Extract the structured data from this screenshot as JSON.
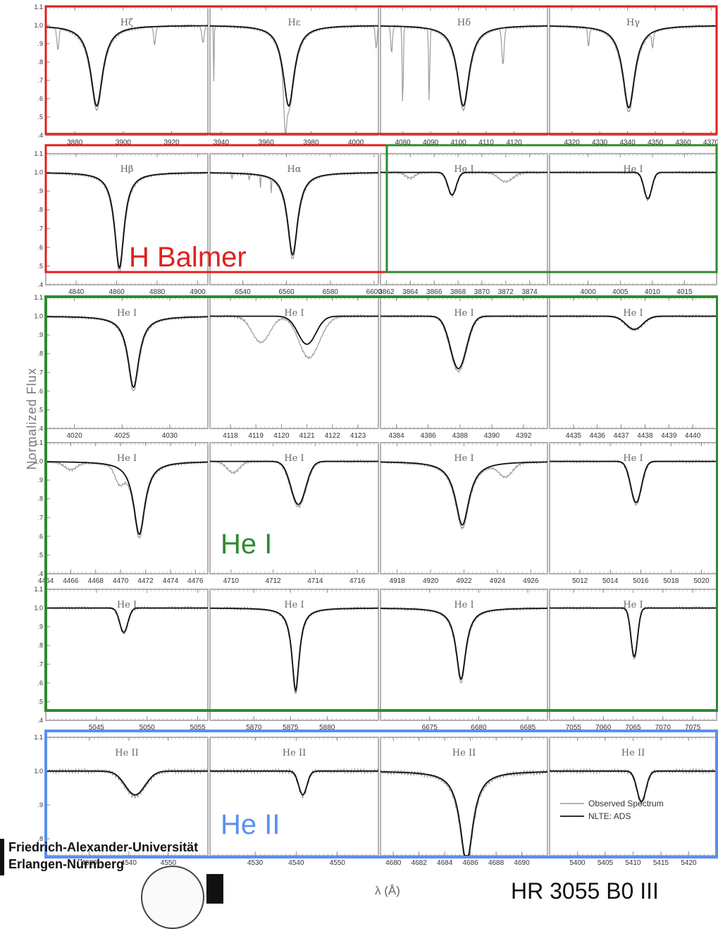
{
  "chart_data": {
    "type": "line",
    "ylabel": "Normalized Flux",
    "xlabel": "λ (Å)",
    "legend": {
      "placement": "bottom-right of last panel",
      "entries": [
        "Observed Spectrum",
        "NLTE: ADS"
      ]
    },
    "series_styles": {
      "observed": "#9a9a9a",
      "model": "#111111"
    },
    "panels": [
      {
        "title": "Hζ",
        "center": 3889.05,
        "xlim": [
          3868,
          3935
        ],
        "ticks": [
          3880,
          3900,
          3920
        ],
        "depth": 0.44,
        "width": 3.0,
        "lorentz": true,
        "ylim": [
          0.4,
          1.1
        ],
        "obs_extra": [
          [
            3873,
            0.12,
            0.4
          ],
          [
            3913,
            0.1,
            0.4
          ],
          [
            3933,
            0.09,
            0.5
          ]
        ]
      },
      {
        "title": "Hε",
        "center": 3970.07,
        "xlim": [
          3935,
          4010
        ],
        "ticks": [
          3940,
          3960,
          3980,
          4000
        ],
        "depth": 0.44,
        "width": 3.0,
        "lorentz": true,
        "ylim": [
          0.4,
          1.1
        ],
        "obs_extra": [
          [
            3968.5,
            0.22,
            0.6
          ],
          [
            4009,
            0.12,
            0.4
          ],
          [
            3936.8,
            0.48,
            0.1
          ]
        ]
      },
      {
        "title": "Hδ",
        "center": 4101.74,
        "xlim": [
          4072,
          4132
        ],
        "ticks": [
          4080,
          4090,
          4100,
          4110,
          4120
        ],
        "depth": 0.44,
        "width": 2.6,
        "lorentz": true,
        "ylim": [
          0.4,
          1.1
        ],
        "obs_extra": [
          [
            4080,
            0.45,
            0.2
          ],
          [
            4089.5,
            0.4,
            0.2
          ],
          [
            4116,
            0.2,
            0.4
          ],
          [
            4076,
            0.15,
            0.3
          ]
        ]
      },
      {
        "title": "Hγ",
        "center": 4340.47,
        "xlim": [
          4312,
          4372
        ],
        "ticks": [
          4320,
          4330,
          4340,
          4350,
          4360,
          4370
        ],
        "depth": 0.45,
        "width": 2.6,
        "lorentz": true,
        "ylim": [
          0.4,
          1.1
        ],
        "obs_extra": [
          [
            4326,
            0.1,
            0.3
          ],
          [
            4349,
            0.08,
            0.3
          ]
        ]
      },
      {
        "title": "Hβ",
        "center": 4861.33,
        "xlim": [
          4825,
          4905
        ],
        "ticks": [
          4840,
          4860,
          4880,
          4900
        ],
        "depth": 0.51,
        "width": 2.8,
        "lorentz": true,
        "ylim": [
          0.4,
          1.1
        ],
        "obs_extra": []
      },
      {
        "title": "Hα",
        "center": 6562.8,
        "xlim": [
          6525,
          6602
        ],
        "ticks": [
          6540,
          6560,
          6580,
          6600
        ],
        "depth": 0.44,
        "width": 2.8,
        "lorentz": true,
        "ylim": [
          0.4,
          1.1
        ],
        "obs_extra": [
          [
            6535,
            0.08,
            0.1
          ],
          [
            6543,
            0.09,
            0.1
          ],
          [
            6548,
            0.1,
            0.1
          ],
          [
            6553,
            0.07,
            0.1
          ]
        ]
      },
      {
        "title": "He I",
        "center": 3867.5,
        "xlim": [
          3861.5,
          3875.5
        ],
        "ticks": [
          3862,
          3864,
          3866,
          3868,
          3870,
          3872,
          3874
        ],
        "depth": 0.12,
        "width": 0.35,
        "lorentz": false,
        "ylim": [
          0.4,
          1.1
        ],
        "obs_extra": [
          [
            3872,
            0.05,
            0.6
          ],
          [
            3864,
            0.03,
            0.4
          ]
        ]
      },
      {
        "title": "He I",
        "center": 4009.3,
        "xlim": [
          3994,
          4020
        ],
        "ticks": [
          4000,
          4005,
          4010,
          4015
        ],
        "depth": 0.14,
        "width": 0.6,
        "lorentz": false,
        "ylim": [
          0.4,
          1.1
        ],
        "obs_extra": []
      },
      {
        "title": "He I",
        "center": 4026.2,
        "xlim": [
          4017,
          4034
        ],
        "ticks": [
          4020,
          4025,
          4030
        ],
        "depth": 0.38,
        "width": 0.7,
        "lorentz": true,
        "ylim": [
          0.4,
          1.1
        ],
        "obs_extra": []
      },
      {
        "title": "He I",
        "center": 4121.0,
        "xlim": [
          4117.2,
          4123.8
        ],
        "ticks": [
          4118,
          4119,
          4120,
          4121,
          4122,
          4123
        ],
        "depth": 0.15,
        "width": 0.35,
        "lorentz": false,
        "ylim": [
          0.4,
          1.1
        ],
        "obs_extra": [
          [
            4119.2,
            0.14,
            0.35
          ],
          [
            4121.3,
            0.08,
            0.4
          ]
        ]
      },
      {
        "title": "He I",
        "center": 4387.9,
        "xlim": [
          4383,
          4393.5
        ],
        "ticks": [
          4384,
          4386,
          4388,
          4390,
          4392
        ],
        "depth": 0.28,
        "width": 0.5,
        "lorentz": false,
        "ylim": [
          0.4,
          1.1
        ],
        "obs_extra": []
      },
      {
        "title": "He I",
        "center": 4437.55,
        "xlim": [
          4434,
          4441
        ],
        "ticks": [
          4435,
          4436,
          4437,
          4438,
          4439,
          4440
        ],
        "depth": 0.07,
        "width": 0.35,
        "lorentz": false,
        "ylim": [
          0.4,
          1.1
        ],
        "obs_extra": []
      },
      {
        "title": "He I",
        "center": 4471.5,
        "xlim": [
          4464,
          4477
        ],
        "ticks": [
          4464,
          4466,
          4468,
          4470,
          4472,
          4474,
          4476
        ],
        "depth": 0.39,
        "width": 0.55,
        "lorentz": true,
        "ylim": [
          0.4,
          1.1
        ],
        "obs_extra": [
          [
            4466,
            0.04,
            0.5
          ],
          [
            4469.9,
            0.08,
            0.35
          ]
        ]
      },
      {
        "title": "He I",
        "center": 4713.2,
        "xlim": [
          4709,
          4717
        ],
        "ticks": [
          4710,
          4712,
          4714,
          4716
        ],
        "depth": 0.23,
        "width": 0.35,
        "lorentz": false,
        "ylim": [
          0.4,
          1.1
        ],
        "obs_extra": [
          [
            4710.1,
            0.06,
            0.3
          ]
        ]
      },
      {
        "title": "He I",
        "center": 4921.9,
        "xlim": [
          4917,
          4927
        ],
        "ticks": [
          4918,
          4920,
          4922,
          4924,
          4926
        ],
        "depth": 0.34,
        "width": 0.5,
        "lorentz": true,
        "ylim": [
          0.4,
          1.1
        ],
        "obs_extra": [
          [
            4924.5,
            0.07,
            0.4
          ]
        ]
      },
      {
        "title": "He I",
        "center": 5015.7,
        "xlim": [
          5010,
          5021
        ],
        "ticks": [
          5012,
          5014,
          5016,
          5018,
          5020
        ],
        "depth": 0.22,
        "width": 0.35,
        "lorentz": false,
        "ylim": [
          0.4,
          1.1
        ],
        "obs_extra": []
      },
      {
        "title": "He I",
        "center": 5047.7,
        "xlim": [
          5040,
          5056
        ],
        "ticks": [
          5045,
          5050,
          5055
        ],
        "depth": 0.13,
        "width": 0.4,
        "lorentz": false,
        "ylim": [
          0.4,
          1.1
        ],
        "obs_extra": []
      },
      {
        "title": "He I",
        "center": 5875.7,
        "xlim": [
          5864,
          5887
        ],
        "ticks": [
          5870,
          5875,
          5880
        ],
        "depth": 0.44,
        "width": 0.6,
        "lorentz": true,
        "ylim": [
          0.4,
          1.1
        ],
        "obs_extra": []
      },
      {
        "title": "He I",
        "center": 6678.2,
        "xlim": [
          6670,
          6687
        ],
        "ticks": [
          6675,
          6680,
          6685
        ],
        "depth": 0.38,
        "width": 0.6,
        "lorentz": true,
        "ylim": [
          0.4,
          1.1
        ],
        "obs_extra": []
      },
      {
        "title": "He I",
        "center": 7065.2,
        "xlim": [
          7051,
          7079
        ],
        "ticks": [
          7055,
          7060,
          7065,
          7070,
          7075
        ],
        "depth": 0.26,
        "width": 0.55,
        "lorentz": false,
        "ylim": [
          0.4,
          1.1
        ],
        "obs_extra": []
      },
      {
        "title": "He II",
        "center": 4541.6,
        "xlim": [
          4519,
          4560
        ],
        "ticks": [
          4530,
          4540,
          4550
        ],
        "depth": 0.07,
        "width": 2.5,
        "lorentz": false,
        "ylim": [
          0.75,
          1.1
        ],
        "obs_extra": []
      },
      {
        "title": "He II",
        "center": 4541.6,
        "xlim": [
          4519,
          4560
        ],
        "ticks": [
          4530,
          4540,
          4550
        ],
        "depth": 0.07,
        "width": 1.0,
        "lorentz": false,
        "ylim": [
          0.75,
          1.1
        ],
        "obs_extra": []
      },
      {
        "title": "He II",
        "center": 4685.7,
        "xlim": [
          4679,
          4692
        ],
        "ticks": [
          4680,
          4682,
          4684,
          4686,
          4688,
          4690
        ],
        "depth": 0.27,
        "width": 0.6,
        "lorentz": true,
        "ylim": [
          0.75,
          1.1
        ],
        "obs_extra": []
      },
      {
        "title": "He II",
        "center": 5411.5,
        "xlim": [
          5395,
          5425
        ],
        "ticks": [
          5400,
          5405,
          5410,
          5415,
          5420
        ],
        "depth": 0.09,
        "width": 0.8,
        "lorentz": false,
        "ylim": [
          0.75,
          1.1
        ],
        "obs_extra": []
      }
    ],
    "yticks_main": [
      ".4",
      ".5",
      ".6",
      ".7",
      ".8",
      ".9",
      "1.0",
      "1.1"
    ],
    "yticks_last": [
      ".8",
      ".9",
      "1.0",
      "1.1"
    ]
  },
  "annotations": {
    "h_balmer": "H Balmer",
    "he_i": "He I",
    "he_ii": "He II",
    "university_line1": "Friedrich-Alexander-Universität",
    "university_line2": "Erlangen-Nürnberg",
    "star": "HR 3055 B0 III"
  },
  "colors": {
    "balmer_box": "#e02020",
    "hei_box": "#2e8b2e",
    "heii_box": "#5b8ff0"
  }
}
